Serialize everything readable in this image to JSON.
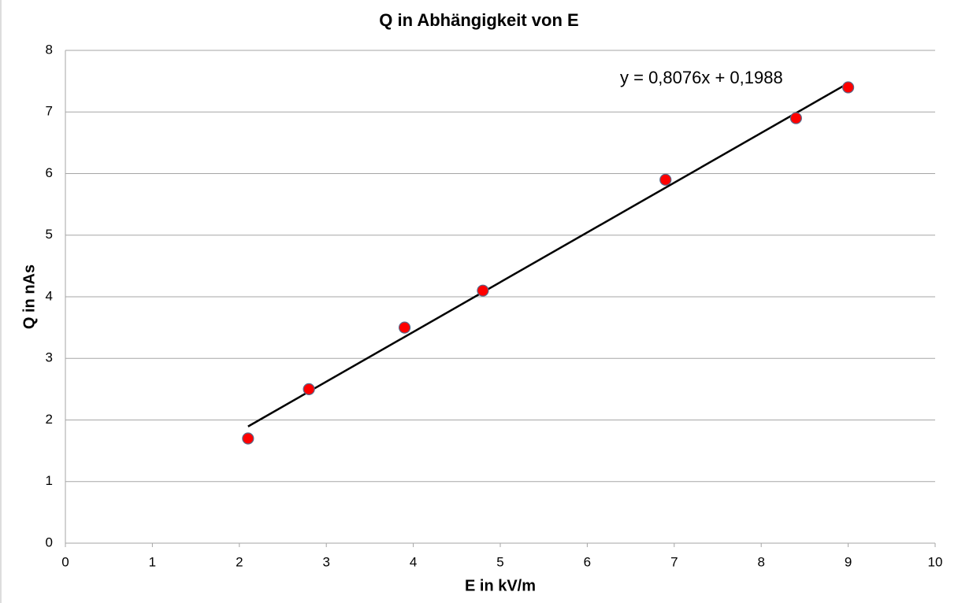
{
  "chart_data": {
    "type": "scatter",
    "title": "Q in Abhängigkeit von E",
    "x_label": "E in kV/m",
    "y_label": "Q in nAs",
    "series": [
      {
        "name": "Q",
        "color": "#ff0000",
        "x": [
          2.1,
          2.8,
          3.9,
          4.8,
          6.9,
          8.4,
          9.0
        ],
        "values": [
          1.7,
          2.5,
          3.5,
          4.1,
          5.9,
          6.9,
          7.4
        ]
      }
    ],
    "trendline": {
      "label": "y = 0,8076x + 0,1988",
      "slope": 0.8076,
      "intercept": 0.1988,
      "color": "#000000"
    },
    "xlim": [
      0,
      10
    ],
    "xticks": [
      0,
      1,
      2,
      3,
      4,
      5,
      6,
      7,
      8,
      9,
      10
    ],
    "ylim": [
      0,
      8
    ],
    "yticks": [
      0,
      1,
      2,
      3,
      4,
      5,
      6,
      7,
      8
    ],
    "grid": true
  }
}
